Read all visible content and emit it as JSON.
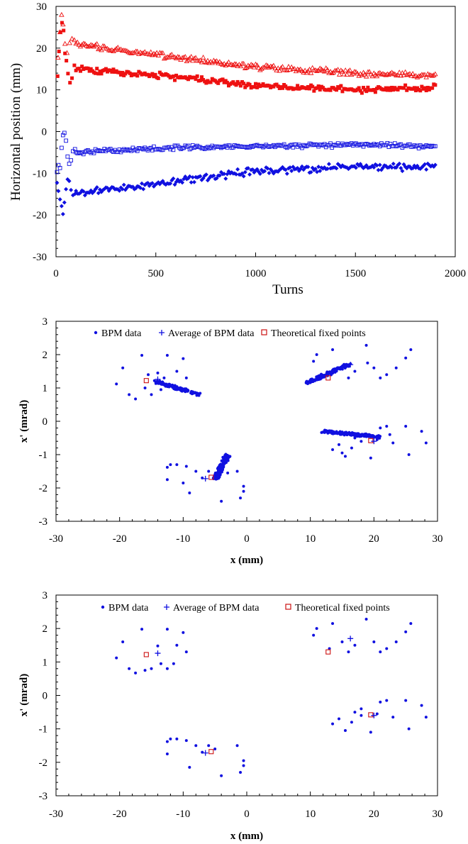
{
  "colors": {
    "red": "#ee1111",
    "blue": "#1010e0",
    "dark_red": "#cc1111",
    "axis": "#000000"
  },
  "chart_data": [
    {
      "type": "scatter",
      "xlabel": "Turns",
      "ylabel": "Horizontal position (mm)",
      "xlim": [
        0,
        2000
      ],
      "ylim": [
        -30,
        30
      ],
      "xticks": [
        "0",
        "500",
        "1000",
        "1500",
        "2000"
      ],
      "yticks": [
        "30",
        "20",
        "10",
        "0",
        "-10",
        "-20",
        "-30"
      ],
      "grid": false,
      "series": [
        {
          "marker": "open-triangle",
          "color": "red",
          "start": {
            "x": [
              10,
              20,
              28,
              35,
              45,
              55,
              68,
              80,
              92
            ],
            "y": [
              17.5,
              24,
              28,
              26,
              21,
              19,
              21,
              22.5,
              22
            ]
          },
          "trend": {
            "x": [
              100,
              500,
              1000,
              1500,
              1900
            ],
            "y": [
              21,
              18.5,
              15.5,
              14,
              13.5
            ]
          },
          "noise": 0.6
        },
        {
          "marker": "filled-square",
          "color": "red",
          "start": {
            "x": [
              8,
              15,
              22,
              30,
              38,
              45,
              52,
              60,
              70,
              80,
              92
            ],
            "y": [
              13,
              19,
              24,
              26,
              24,
              19,
              17,
              14,
              11.5,
              13,
              16
            ]
          },
          "trend": {
            "x": [
              100,
              500,
              1000,
              1500,
              1900
            ],
            "y": [
              15,
              13.5,
              11,
              10,
              10.5
            ]
          },
          "noise": 0.7
        },
        {
          "marker": "open-square",
          "color": "blue",
          "start": {
            "x": [
              5,
              12,
              20,
              28,
              35,
              42,
              50,
              58,
              66,
              75,
              85,
              95
            ],
            "y": [
              -10,
              -8,
              -9,
              -4,
              -1,
              -0.5,
              -2,
              -6,
              -8,
              -7,
              -5,
              -4.5
            ]
          },
          "trend": {
            "x": [
              100,
              500,
              1000,
              1500,
              1900
            ],
            "y": [
              -5,
              -4,
              -3.5,
              -3.2,
              -3.5
            ]
          },
          "noise": 0.5
        },
        {
          "marker": "filled-diamond",
          "color": "blue",
          "start": {
            "x": [
              5,
              12,
              20,
              28,
              35,
              42,
              50,
              58,
              66,
              75,
              85,
              95
            ],
            "y": [
              -12,
              -14,
              -16,
              -18,
              -20,
              -17,
              -14,
              -11.5,
              -12,
              -14,
              -15.5,
              -15
            ]
          },
          "trend": {
            "x": [
              100,
              500,
              1000,
              1500,
              1900
            ],
            "y": [
              -15,
              -12.5,
              -9.5,
              -8.5,
              -8.5
            ]
          },
          "noise": 0.8
        }
      ]
    },
    {
      "type": "scatter",
      "xlabel": "x (mm)",
      "ylabel": "x' (mrad)",
      "xlim": [
        -30,
        30
      ],
      "ylim": [
        -3,
        3
      ],
      "xticks": [
        "-30",
        "-20",
        "-10",
        "0",
        "10",
        "20",
        "30"
      ],
      "yticks": [
        "3",
        "2",
        "1",
        "0",
        "-1",
        "-2",
        "-3"
      ],
      "legend": [
        "BPM data",
        "Average of BPM data",
        "Theoretical fixed points"
      ],
      "legend_position": "top",
      "clusters": [
        {
          "from": [
            -14.5,
            1.2
          ],
          "to": [
            -7.5,
            0.8
          ]
        },
        {
          "from": [
            9.5,
            1.15
          ],
          "to": [
            16,
            1.7
          ]
        },
        {
          "from": [
            12,
            -0.3
          ],
          "to": [
            21,
            -0.47
          ]
        },
        {
          "from": [
            -5,
            -1.75
          ],
          "to": [
            -3,
            -1.0
          ]
        }
      ],
      "scatter_points": [
        [
          -20.5,
          1.12
        ],
        [
          -19.5,
          1.6
        ],
        [
          -18.5,
          0.8
        ],
        [
          -17.5,
          0.67
        ],
        [
          -16.5,
          1.98
        ],
        [
          -16,
          1.0
        ],
        [
          -14,
          1.45
        ],
        [
          -13,
          1.3
        ],
        [
          -12.5,
          1.98
        ],
        [
          -11,
          1.5
        ],
        [
          -10,
          1.88
        ],
        [
          -9.5,
          1.3
        ],
        [
          -15,
          0.8
        ],
        [
          -13.5,
          0.95
        ],
        [
          -15.5,
          1.4
        ],
        [
          10.5,
          1.8
        ],
        [
          11,
          2.0
        ],
        [
          13.5,
          2.15
        ],
        [
          15,
          1.6
        ],
        [
          16,
          1.3
        ],
        [
          18.8,
          2.28
        ],
        [
          20,
          1.6
        ],
        [
          21,
          1.3
        ],
        [
          22,
          1.4
        ],
        [
          23.5,
          1.6
        ],
        [
          25,
          1.9
        ],
        [
          25.8,
          2.15
        ],
        [
          19,
          1.75
        ],
        [
          17,
          1.5
        ],
        [
          13.5,
          -0.85
        ],
        [
          14.5,
          -0.7
        ],
        [
          15.5,
          -1.05
        ],
        [
          16.5,
          -0.8
        ],
        [
          17,
          -0.5
        ],
        [
          18,
          -0.6
        ],
        [
          18,
          -0.4
        ],
        [
          19.5,
          -1.1
        ],
        [
          20.5,
          -0.55
        ],
        [
          21,
          -0.2
        ],
        [
          22,
          -0.15
        ],
        [
          23,
          -0.65
        ],
        [
          25,
          -0.15
        ],
        [
          25.5,
          -1.0
        ],
        [
          27.5,
          -0.3
        ],
        [
          28.2,
          -0.65
        ],
        [
          15,
          -0.95
        ],
        [
          22.5,
          -0.4
        ],
        [
          -12.5,
          -1.75
        ],
        [
          -12,
          -1.3
        ],
        [
          -11,
          -1.3
        ],
        [
          -9,
          -2.15
        ],
        [
          -8,
          -1.5
        ],
        [
          -7,
          -1.7
        ],
        [
          -6,
          -1.5
        ],
        [
          -5,
          -1.6
        ],
        [
          -4,
          -2.4
        ],
        [
          -1.5,
          -1.5
        ],
        [
          -0.5,
          -2.1
        ],
        [
          -1,
          -2.3
        ],
        [
          -0.5,
          -1.95
        ],
        [
          -9.5,
          -1.35
        ],
        [
          -12.5,
          -1.38
        ],
        [
          -10,
          -1.85
        ],
        [
          -3,
          -1.55
        ]
      ],
      "averages": [
        [
          -14,
          1.26
        ],
        [
          16.3,
          1.7
        ],
        [
          20,
          -0.6
        ],
        [
          -6.5,
          -1.72
        ]
      ],
      "fixed_points": [
        [
          -15.8,
          1.22
        ],
        [
          12.8,
          1.3
        ],
        [
          19.5,
          -0.58
        ],
        [
          -5.6,
          -1.68
        ]
      ]
    },
    {
      "type": "scatter",
      "xlabel": "x (mm)",
      "ylabel": "x' (mrad)",
      "xlim": [
        -30,
        30
      ],
      "ylim": [
        -3,
        3
      ],
      "xticks": [
        "-30",
        "-20",
        "-10",
        "0",
        "10",
        "20",
        "30"
      ],
      "yticks": [
        "3",
        "2",
        "1",
        "0",
        "-1",
        "-2",
        "-3"
      ],
      "legend": [
        "BPM data",
        "Average of BPM data",
        "Theoretical fixed points"
      ],
      "legend_position": "top",
      "scatter_points": [
        [
          -20.5,
          1.12
        ],
        [
          -19.5,
          1.6
        ],
        [
          -18.5,
          0.8
        ],
        [
          -17.5,
          0.67
        ],
        [
          -16.5,
          1.98
        ],
        [
          -16,
          0.75
        ],
        [
          -15,
          0.8
        ],
        [
          -13.5,
          0.95
        ],
        [
          -12.5,
          1.98
        ],
        [
          -12.5,
          0.8
        ],
        [
          -11.5,
          0.95
        ],
        [
          -11,
          1.5
        ],
        [
          -10,
          1.88
        ],
        [
          -9.5,
          1.3
        ],
        [
          -14,
          1.48
        ],
        [
          10.5,
          1.8
        ],
        [
          11,
          2.0
        ],
        [
          13.5,
          2.15
        ],
        [
          15,
          1.6
        ],
        [
          16,
          1.3
        ],
        [
          17,
          1.5
        ],
        [
          18.8,
          2.28
        ],
        [
          20,
          1.6
        ],
        [
          21,
          1.3
        ],
        [
          22,
          1.4
        ],
        [
          23.5,
          1.6
        ],
        [
          25,
          1.9
        ],
        [
          25.8,
          2.15
        ],
        [
          13,
          1.4
        ],
        [
          13.5,
          -0.85
        ],
        [
          14.5,
          -0.7
        ],
        [
          15.5,
          -1.05
        ],
        [
          16.5,
          -0.8
        ],
        [
          17,
          -0.5
        ],
        [
          18,
          -0.6
        ],
        [
          18,
          -0.4
        ],
        [
          19.5,
          -1.1
        ],
        [
          20.5,
          -0.55
        ],
        [
          21,
          -0.2
        ],
        [
          22,
          -0.15
        ],
        [
          23,
          -0.65
        ],
        [
          25,
          -0.15
        ],
        [
          25.5,
          -1.0
        ],
        [
          27.5,
          -0.3
        ],
        [
          28.2,
          -0.65
        ],
        [
          -12.5,
          -1.75
        ],
        [
          -12,
          -1.3
        ],
        [
          -11,
          -1.3
        ],
        [
          -9,
          -2.15
        ],
        [
          -8,
          -1.5
        ],
        [
          -7,
          -1.7
        ],
        [
          -6,
          -1.5
        ],
        [
          -5,
          -1.6
        ],
        [
          -4,
          -2.4
        ],
        [
          -1.5,
          -1.5
        ],
        [
          -0.5,
          -2.1
        ],
        [
          -1,
          -2.3
        ],
        [
          -0.5,
          -1.95
        ],
        [
          -9.5,
          -1.35
        ],
        [
          -12.5,
          -1.38
        ]
      ],
      "averages": [
        [
          -14,
          1.26
        ],
        [
          16.3,
          1.7
        ],
        [
          20,
          -0.6
        ],
        [
          -6.5,
          -1.72
        ]
      ],
      "fixed_points": [
        [
          -15.8,
          1.22
        ],
        [
          12.8,
          1.3
        ],
        [
          19.5,
          -0.58
        ],
        [
          -5.6,
          -1.68
        ]
      ]
    }
  ]
}
